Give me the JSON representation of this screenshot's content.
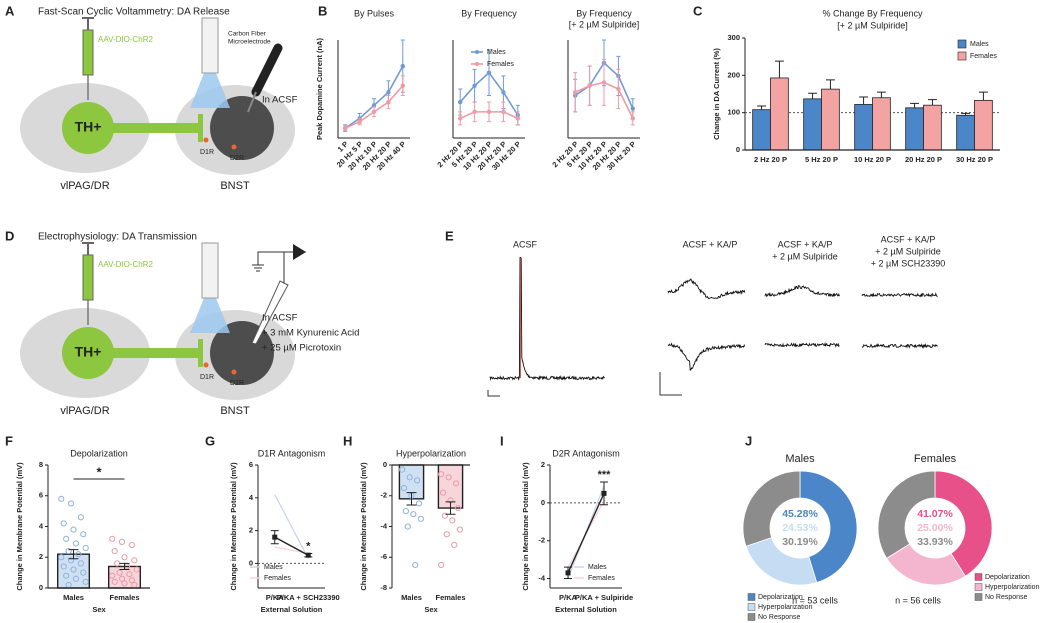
{
  "diagram_a": {
    "label": "A",
    "title": "Fast-Scan Cyclic Voltammetry: DA Release",
    "virus": "AAV-DIO-ChR2",
    "electrode": [
      "Carbon Fiber",
      "Microelectrode"
    ],
    "soma": "TH+",
    "source": "vlPAG/DR",
    "target": "BNST",
    "receptors": [
      "D1R",
      "D2R"
    ],
    "solution": [
      "In ACSF"
    ]
  },
  "diagram_d": {
    "label": "D",
    "title": "Electrophysiology: DA Transmission",
    "virus": "AAV-DIO-ChR2",
    "soma": "TH+",
    "source": "vlPAG/DR",
    "target": "BNST",
    "receptors": [
      "D1R",
      "D2R"
    ],
    "solution": [
      "In ACSF",
      "+ 3 mM Kynurenic Acid",
      "+ 25 µM Picrotoxin"
    ]
  },
  "traces_e": {
    "label": "E",
    "conditions": [
      [
        "ACSF"
      ],
      [
        "ACSF + KA/P"
      ],
      [
        "ACSF + KA/P",
        "+ 2 µM Sulpiride"
      ],
      [
        "ACSF + KA/P",
        "+ 2 µM Sulpiride",
        "+ 2 µM SCH23390"
      ]
    ]
  },
  "chart_data": [
    {
      "type": "line",
      "label": "B",
      "ylabel": "Peak Dopamine Current (nA)",
      "ylim": [
        0,
        3
      ],
      "series": [
        {
          "name": "Males",
          "color": "#6f9ad8"
        },
        {
          "name": "Females",
          "color": "#f09aa4"
        }
      ],
      "panels": [
        {
          "title": [
            "By Pulses"
          ],
          "categories": [
            "1 P",
            "20 Hz 5 P",
            "20 Hz 10 P",
            "20 Hz 20 P",
            "20 Hz 40 P"
          ],
          "values": [
            [
              0.3,
              0.6,
              1.0,
              1.4,
              2.2
            ],
            [
              0.3,
              0.5,
              0.8,
              1.1,
              1.6
            ]
          ],
          "errors": [
            [
              0.1,
              0.15,
              0.2,
              0.35,
              0.8
            ],
            [
              0.08,
              0.1,
              0.15,
              0.2,
              0.3
            ]
          ]
        },
        {
          "title": [
            "By Frequency"
          ],
          "categories": [
            "2 Hz 20 P",
            "5 Hz 20 P",
            "10 Hz 20 P",
            "20 Hz 20 P",
            "30 Hz 20 P"
          ],
          "values": [
            [
              1.1,
              1.6,
              2.0,
              1.4,
              0.7
            ],
            [
              0.6,
              0.8,
              0.8,
              0.8,
              0.6
            ]
          ],
          "errors": [
            [
              0.4,
              0.5,
              0.7,
              0.5,
              0.3
            ],
            [
              0.2,
              0.3,
              0.3,
              0.3,
              0.2
            ]
          ]
        },
        {
          "title": [
            "By Frequency",
            "[+ 2 µM Sulpiride]"
          ],
          "categories": [
            "2 Hz 20 P",
            "5 Hz 20 P",
            "10 Hz 20 P",
            "20 Hz 20 P",
            "30 Hz 20 P"
          ],
          "values": [
            [
              1.3,
              1.6,
              2.3,
              1.9,
              0.9
            ],
            [
              1.4,
              1.6,
              1.7,
              1.5,
              0.6
            ]
          ],
          "errors": [
            [
              0.5,
              0.6,
              0.7,
              0.6,
              0.3
            ],
            [
              0.6,
              0.6,
              0.7,
              0.6,
              0.2
            ]
          ]
        }
      ]
    },
    {
      "type": "bar",
      "label": "C",
      "title": "% Change By Frequency",
      "subtitle": "[+ 2 µM Sulpiride]",
      "ylabel": "Change in DA Current (%)",
      "categories": [
        "2 Hz 20 P",
        "5 Hz 20 P",
        "10 Hz 20 P",
        "20 Hz 20 P",
        "30 Hz 20 P"
      ],
      "series": [
        {
          "name": "Males",
          "color": "#4a86c8",
          "values": [
            108,
            137,
            122,
            113,
            93
          ],
          "errors": [
            10,
            15,
            20,
            12,
            5
          ]
        },
        {
          "name": "Females",
          "color": "#f4a3a3",
          "values": [
            193,
            163,
            140,
            120,
            133
          ],
          "errors": [
            45,
            25,
            15,
            15,
            22
          ]
        }
      ],
      "ylim": [
        0,
        300
      ],
      "yticks": [
        0,
        100,
        200,
        300
      ],
      "reference_line": 100,
      "legend": "upper right"
    },
    {
      "type": "bar",
      "label": "F",
      "title": "Depolarization",
      "ylabel": "Change in Membrane Potential (mV)",
      "xlabel": "Sex",
      "categories": [
        "Males",
        "Females"
      ],
      "values": [
        2.2,
        1.4
      ],
      "errors": [
        0.3,
        0.2
      ],
      "colors": [
        "#cfe0f3",
        "#f8d5da"
      ],
      "point_colors": [
        "#8fb3dc",
        "#e79ca6"
      ],
      "points": [
        [
          5.8,
          5.5,
          4.6,
          4.2,
          3.8,
          3.5,
          3.2,
          2.9,
          2.6,
          2.4,
          2.2,
          2.0,
          1.8,
          1.6,
          1.4,
          1.2,
          1.0,
          0.8,
          0.6,
          0.4,
          0.2
        ],
        [
          3.2,
          3.0,
          2.8,
          2.4,
          2.0,
          1.8,
          1.6,
          1.4,
          1.2,
          1.0,
          0.9,
          0.8,
          0.6,
          0.5,
          0.4,
          0.3,
          0.2
        ]
      ],
      "ylim": [
        0,
        8
      ],
      "yticks": [
        0,
        2,
        4,
        6,
        8
      ],
      "annotation": "*"
    },
    {
      "type": "line",
      "label": "G",
      "title": "D1R Antagonism",
      "ylabel": "Change in Membrane Potential (mV)",
      "xlabel": "External Solution",
      "categories": [
        "P/KA",
        "P/KA + SCH23390"
      ],
      "values": [
        1.6,
        0.5
      ],
      "errors": [
        0.4,
        0.1
      ],
      "series": [
        {
          "name": "Males",
          "color": "#c9d3ea",
          "values": [
            4.2,
            0.3
          ]
        },
        {
          "name": "Females",
          "color": "#f6d3d8",
          "values": [
            1.0,
            0.6
          ]
        }
      ],
      "ylim": [
        -1.5,
        6
      ],
      "yticks": [
        0,
        2,
        4,
        6
      ],
      "reference_line": 0,
      "annotation": "*",
      "legend": "lower left"
    },
    {
      "type": "bar",
      "label": "H",
      "title": "Hyperpolarization",
      "ylabel": "Change in Membrane Potential (mV)",
      "xlabel": "Sex",
      "categories": [
        "Males",
        "Females"
      ],
      "values": [
        -2.2,
        -2.8
      ],
      "errors": [
        0.4,
        0.4
      ],
      "colors": [
        "#cfe0f3",
        "#f8d5da"
      ],
      "point_colors": [
        "#8fb3dc",
        "#e79ca6"
      ],
      "points": [
        [
          -0.3,
          -0.8,
          -1.0,
          -1.5,
          -2.0,
          -2.5,
          -3.0,
          -3.2,
          -3.5,
          -4.0,
          -6.5
        ],
        [
          -0.6,
          -0.8,
          -1.2,
          -1.8,
          -2.3,
          -2.8,
          -3.3,
          -3.6,
          -4.2,
          -4.5,
          -5.2,
          -6.5
        ]
      ],
      "ylim": [
        -8,
        0
      ],
      "yticks": [
        -8,
        -6,
        -4,
        -2,
        0
      ]
    },
    {
      "type": "line",
      "label": "I",
      "title": "D2R Antagonism",
      "ylabel": "Change in Membrane Potential (mV)",
      "xlabel": "External Solution",
      "categories": [
        "P/KA",
        "P/KA + Sulpiride"
      ],
      "values": [
        -3.7,
        0.5
      ],
      "errors": [
        0.3,
        0.6
      ],
      "series": [
        {
          "name": "Males",
          "color": "#c9d3ea",
          "values": [
            -4.0,
            0.9
          ]
        },
        {
          "name": "Females",
          "color": "#f6d3d8",
          "values": [
            -3.4,
            0.1
          ]
        }
      ],
      "ylim": [
        -4.5,
        2
      ],
      "yticks": [
        -4,
        -2,
        0,
        2
      ],
      "reference_line": 0,
      "annotation": "***",
      "legend": "lower right"
    },
    {
      "type": "pie",
      "label": "J",
      "categories": [
        "Depolarization",
        "Hyperpolarization",
        "No Response"
      ],
      "pies": [
        {
          "title": "Males",
          "colors": [
            "#4a86c8",
            "#c5dcf2",
            "#8c8c8c"
          ],
          "values": [
            45.28,
            24.53,
            30.19
          ],
          "value_labels": [
            "45.28%",
            "24.53%",
            "30.19%"
          ],
          "note": "n = 53 cells"
        },
        {
          "title": "Females",
          "colors": [
            "#e8508a",
            "#f4b6cf",
            "#8c8c8c"
          ],
          "values": [
            41.07,
            25.0,
            33.93
          ],
          "value_labels": [
            "41.07%",
            "25.00%",
            "33.93%"
          ],
          "note": "n = 56 cells"
        }
      ]
    }
  ]
}
